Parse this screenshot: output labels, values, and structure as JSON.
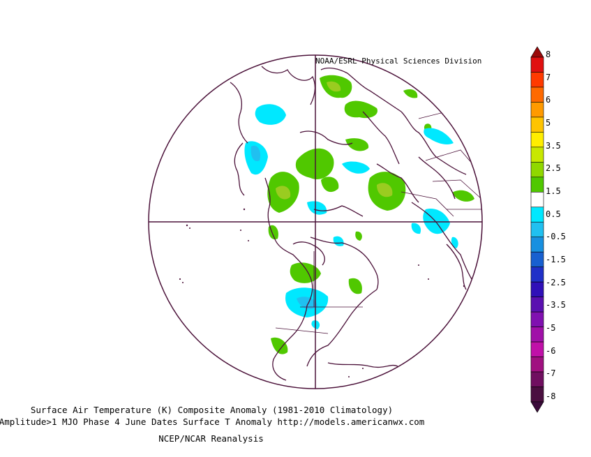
{
  "credit": "NOAA/ESRL Physical Sciences Division",
  "caption": {
    "line1": "Surface Air Temperature (K) Composite Anomaly (1981-2010 Climatology)",
    "line2": "Amplitude>1 MJO Phase 4 June Dates Surface T Anomaly http://models.americanwx.com",
    "line3": "NCEP/NCAR Reanalysis"
  },
  "colorbar": {
    "labels": [
      "8",
      "7",
      "6",
      "5",
      "3.5",
      "2.5",
      "1.5",
      "0.5",
      "-0.5",
      "-1.5",
      "-2.5",
      "-3.5",
      "-5",
      "-6",
      "-7",
      "-8"
    ],
    "colors": [
      "#e01010",
      "#ff3a00",
      "#ff6a00",
      "#ff9a00",
      "#ffc400",
      "#ffee00",
      "#c8e800",
      "#90d800",
      "#50c800",
      "#ffffff",
      "#00e8ff",
      "#20c0f0",
      "#1890e0",
      "#1860d0",
      "#2030c8",
      "#3010b8",
      "#5a10b0",
      "#8010b0",
      "#a010a8",
      "#c010a8",
      "#a01080",
      "#700f60",
      "#4a0f40"
    ],
    "top_arrow": "#9a0a0a",
    "bottom_arrow": "#3a0a3a"
  },
  "map_colors": {
    "coast": "#4a1038",
    "green": "#50c800",
    "lightgreen": "#90d800",
    "olive": "#9acc20",
    "cyan": "#00e8ff",
    "lightblue": "#20c0f0"
  }
}
